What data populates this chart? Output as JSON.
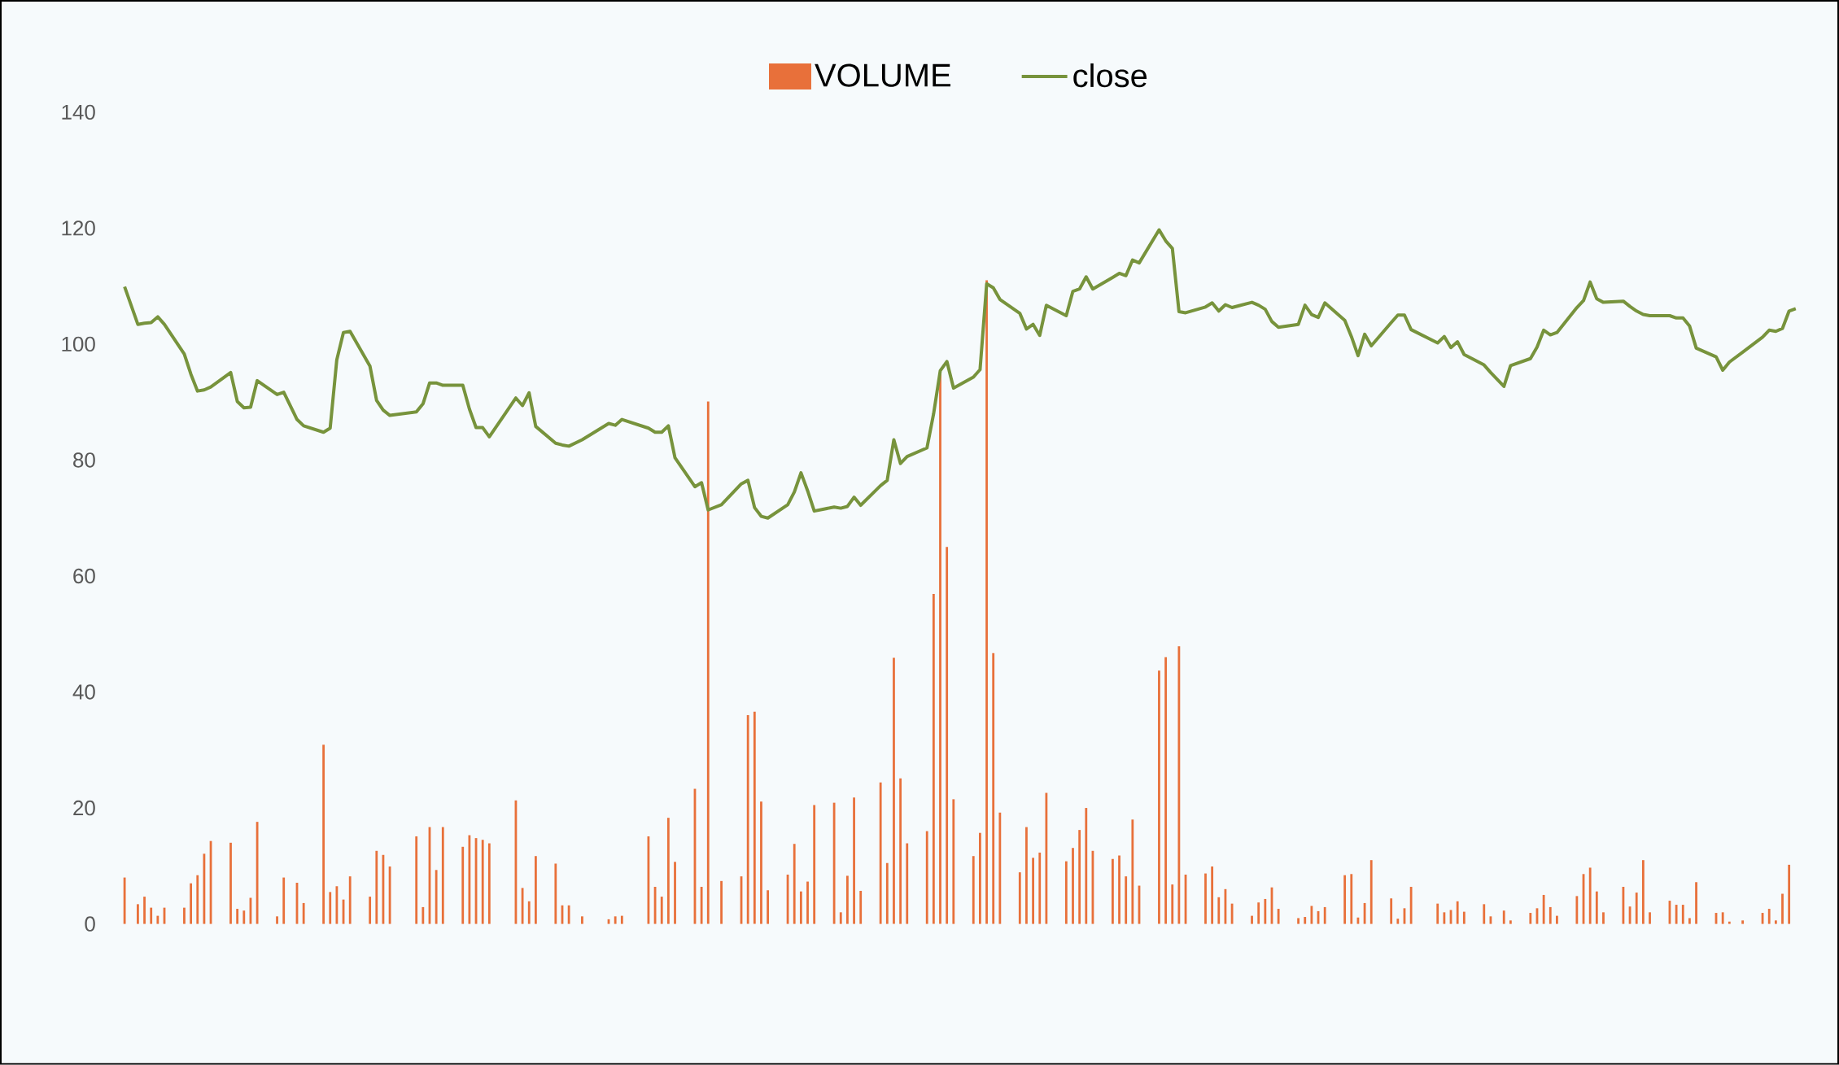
{
  "chart_data": {
    "type": "bar",
    "categories": [
      null,
      null,
      null,
      null,
      null,
      null,
      null,
      null,
      null,
      null,
      null,
      null,
      null,
      null,
      null,
      null,
      null,
      null,
      null,
      null,
      null,
      null,
      null,
      null,
      null,
      null,
      null,
      null,
      null,
      null,
      null,
      null,
      null,
      null,
      null,
      null,
      null,
      null,
      null,
      null,
      null,
      null,
      null,
      null,
      null,
      null,
      null,
      null,
      null,
      null,
      null,
      null,
      null,
      null,
      null,
      null,
      null,
      null,
      null,
      null,
      null,
      null,
      null,
      null,
      null,
      null,
      null,
      null,
      null,
      null,
      null,
      null,
      null,
      null,
      null,
      null,
      null,
      null,
      null,
      null,
      null,
      null,
      null,
      null,
      null,
      null,
      null,
      null,
      null,
      null,
      null,
      null,
      null,
      null,
      null,
      null,
      null,
      null,
      null,
      null,
      null,
      null,
      null,
      null,
      null,
      null,
      null,
      null,
      null,
      null,
      null,
      null,
      null,
      null,
      null,
      null,
      null,
      null,
      null,
      null,
      null,
      null,
      null,
      null,
      null,
      null,
      null,
      null,
      null,
      null,
      null,
      null,
      null,
      null,
      null,
      null,
      null,
      null,
      null,
      null,
      null,
      null,
      null,
      null,
      null,
      null,
      null,
      null,
      null,
      null,
      null,
      null,
      null,
      null,
      null,
      null,
      null,
      null,
      null,
      null,
      null,
      null,
      null,
      null,
      null,
      null,
      null,
      null,
      null,
      null,
      null,
      null,
      null,
      null,
      null,
      null,
      null,
      null,
      null,
      null,
      null,
      null,
      null,
      null,
      null,
      null,
      null,
      null,
      null,
      null,
      null,
      null,
      null,
      null,
      null,
      null,
      null,
      null,
      null,
      null,
      null,
      null,
      null,
      null,
      null,
      null,
      null,
      null,
      null,
      null,
      null,
      null,
      null,
      null,
      null,
      null,
      null,
      null,
      null,
      null,
      null,
      null,
      null,
      null,
      null,
      null,
      null,
      null,
      null,
      null,
      null,
      null,
      null,
      null,
      null,
      null,
      null,
      null,
      null,
      null,
      null,
      null,
      null,
      null,
      null,
      null,
      null,
      null,
      null,
      null,
      null,
      null,
      null
    ],
    "series": [
      {
        "name": "VOLUME",
        "color": "#e8703a",
        "values": [
          8,
          null,
          3.4,
          4.7,
          2.8,
          1.4,
          2.8,
          null,
          null,
          2.8,
          7,
          8.4,
          12.1,
          14.3,
          null,
          null,
          14,
          2.6,
          2.3,
          4.5,
          17.6,
          null,
          null,
          1.3,
          8,
          null,
          7.1,
          3.6,
          null,
          null,
          30.9,
          5.5,
          6.5,
          4.2,
          8.2,
          null,
          null,
          4.7,
          12.6,
          11.9,
          9.9,
          null,
          null,
          null,
          15.1,
          2.9,
          16.7,
          9.3,
          16.7,
          null,
          null,
          13.3,
          15.3,
          14.8,
          14.5,
          13.9,
          null,
          null,
          null,
          21.3,
          6.2,
          3.9,
          11.7,
          null,
          null,
          10.4,
          3.2,
          3.2,
          null,
          1.3,
          null,
          null,
          null,
          0.8,
          1.3,
          1.4,
          null,
          null,
          null,
          15.1,
          6.4,
          4.7,
          18.3,
          10.7,
          null,
          null,
          23.3,
          6.4,
          90.1,
          null,
          7.4,
          null,
          null,
          8.2,
          36,
          36.6,
          21.1,
          5.8,
          null,
          null,
          8.5,
          13.8,
          5.6,
          7.3,
          20.5,
          null,
          null,
          20.9,
          2,
          8.3,
          21.8,
          5.7,
          null,
          null,
          24.4,
          10.5,
          45.9,
          25.1,
          13.9,
          null,
          null,
          16,
          56.9,
          95.4,
          65,
          21.5,
          null,
          null,
          11.7,
          15.7,
          111,
          46.7,
          19.2,
          null,
          null,
          8.9,
          16.7,
          11.4,
          12.3,
          22.6,
          null,
          null,
          10.8,
          13.1,
          16.2,
          20,
          12.6,
          null,
          null,
          11.2,
          11.8,
          8.2,
          18,
          6.6,
          null,
          null,
          43.7,
          46,
          6.8,
          47.9,
          8.5,
          null,
          null,
          8.7,
          9.9,
          4.6,
          6,
          3.5,
          null,
          null,
          1.4,
          3.7,
          4.3,
          6.3,
          2.6,
          null,
          null,
          1,
          1.2,
          3.1,
          2.2,
          2.9,
          null,
          null,
          8.4,
          8.6,
          1.1,
          3.6,
          11,
          null,
          null,
          4.4,
          0.9,
          2.7,
          6.4,
          null,
          null,
          null,
          3.5,
          2,
          2.4,
          3.9,
          2.1,
          null,
          null,
          3.4,
          1.3,
          null,
          2.3,
          0.6,
          null,
          null,
          1.9,
          2.7,
          5,
          2.9,
          1.4,
          null,
          null,
          4.8,
          8.6,
          9.7,
          5.6,
          2,
          null,
          null,
          6.4,
          3,
          5.4,
          11,
          2,
          null,
          null,
          4,
          3.3,
          3.3,
          1,
          7.2,
          null,
          null,
          1.9,
          2,
          0.4,
          null,
          0.6,
          null,
          null,
          1.9,
          2.6,
          0.6,
          5.2,
          10.2,
          null
        ]
      },
      {
        "name": "close",
        "type": "line",
        "color": "#77933c",
        "values": [
          109.9,
          null,
          103.4,
          103.6,
          103.7,
          104.7,
          103.4,
          null,
          null,
          98.3,
          94.8,
          91.9,
          92.1,
          92.6,
          null,
          null,
          95.1,
          90.1,
          89,
          89.1,
          93.7,
          null,
          null,
          91.3,
          91.7,
          null,
          87,
          85.9,
          null,
          null,
          84.8,
          85.5,
          97.3,
          102,
          102.2,
          null,
          null,
          96.2,
          90.3,
          88.6,
          87.7,
          null,
          null,
          null,
          88.3,
          89.7,
          93.3,
          93.3,
          92.9,
          null,
          null,
          92.9,
          88.8,
          85.6,
          85.6,
          84,
          null,
          null,
          null,
          90.7,
          89.4,
          91.6,
          85.8,
          null,
          null,
          82.9,
          82.6,
          82.4,
          null,
          83.5,
          null,
          null,
          null,
          86.3,
          86,
          87,
          null,
          null,
          null,
          85.5,
          84.8,
          84.8,
          85.9,
          80.4,
          null,
          null,
          75.4,
          76.1,
          71.4,
          null,
          72.3,
          null,
          null,
          75.9,
          76.5,
          71.8,
          70.3,
          70,
          null,
          null,
          72.3,
          74.5,
          77.8,
          74.7,
          71.2,
          null,
          null,
          71.9,
          71.7,
          72,
          73.6,
          72.2,
          null,
          null,
          75.6,
          76.5,
          83.5,
          79.4,
          80.6,
          null,
          null,
          82.1,
          88,
          95.4,
          97,
          92.4,
          null,
          null,
          94.3,
          95.6,
          110.4,
          109.7,
          107.7,
          null,
          null,
          105.3,
          102.6,
          103.4,
          101.5,
          106.7,
          null,
          null,
          104.9,
          109.1,
          109.5,
          111.6,
          109.5,
          null,
          null,
          111.5,
          112.2,
          111.8,
          114.5,
          114,
          null,
          null,
          119.7,
          117.8,
          116.5,
          105.6,
          105.4,
          null,
          null,
          106.4,
          107.1,
          105.7,
          106.8,
          106.3,
          null,
          null,
          107.2,
          106.7,
          106,
          103.9,
          102.9,
          null,
          null,
          103.4,
          106.7,
          105.1,
          104.6,
          107.1,
          null,
          null,
          104.1,
          101.3,
          98,
          101.7,
          99.7,
          null,
          null,
          103.7,
          105,
          105,
          102.5,
          null,
          null,
          null,
          100.2,
          101.3,
          99.4,
          100.4,
          98.2,
          null,
          null,
          96.4,
          95.1,
          null,
          92.7,
          96.3,
          null,
          null,
          97.5,
          99.5,
          102.4,
          101.6,
          102,
          null,
          null,
          106.3,
          107.5,
          110.7,
          107.8,
          107.2,
          null,
          null,
          107.4,
          106.5,
          105.7,
          105.1,
          104.9,
          null,
          null,
          104.9,
          104.5,
          104.5,
          103.1,
          99.3,
          null,
          null,
          97.8,
          95.5,
          96.9,
          null,
          98.6,
          null,
          null,
          101.2,
          102.4,
          102.2,
          102.7,
          105.7,
          106.1
        ]
      }
    ],
    "ylim": [
      0,
      140
    ],
    "yticks": [
      0,
      20,
      40,
      60,
      80,
      100,
      120,
      140
    ],
    "legend": "top"
  }
}
